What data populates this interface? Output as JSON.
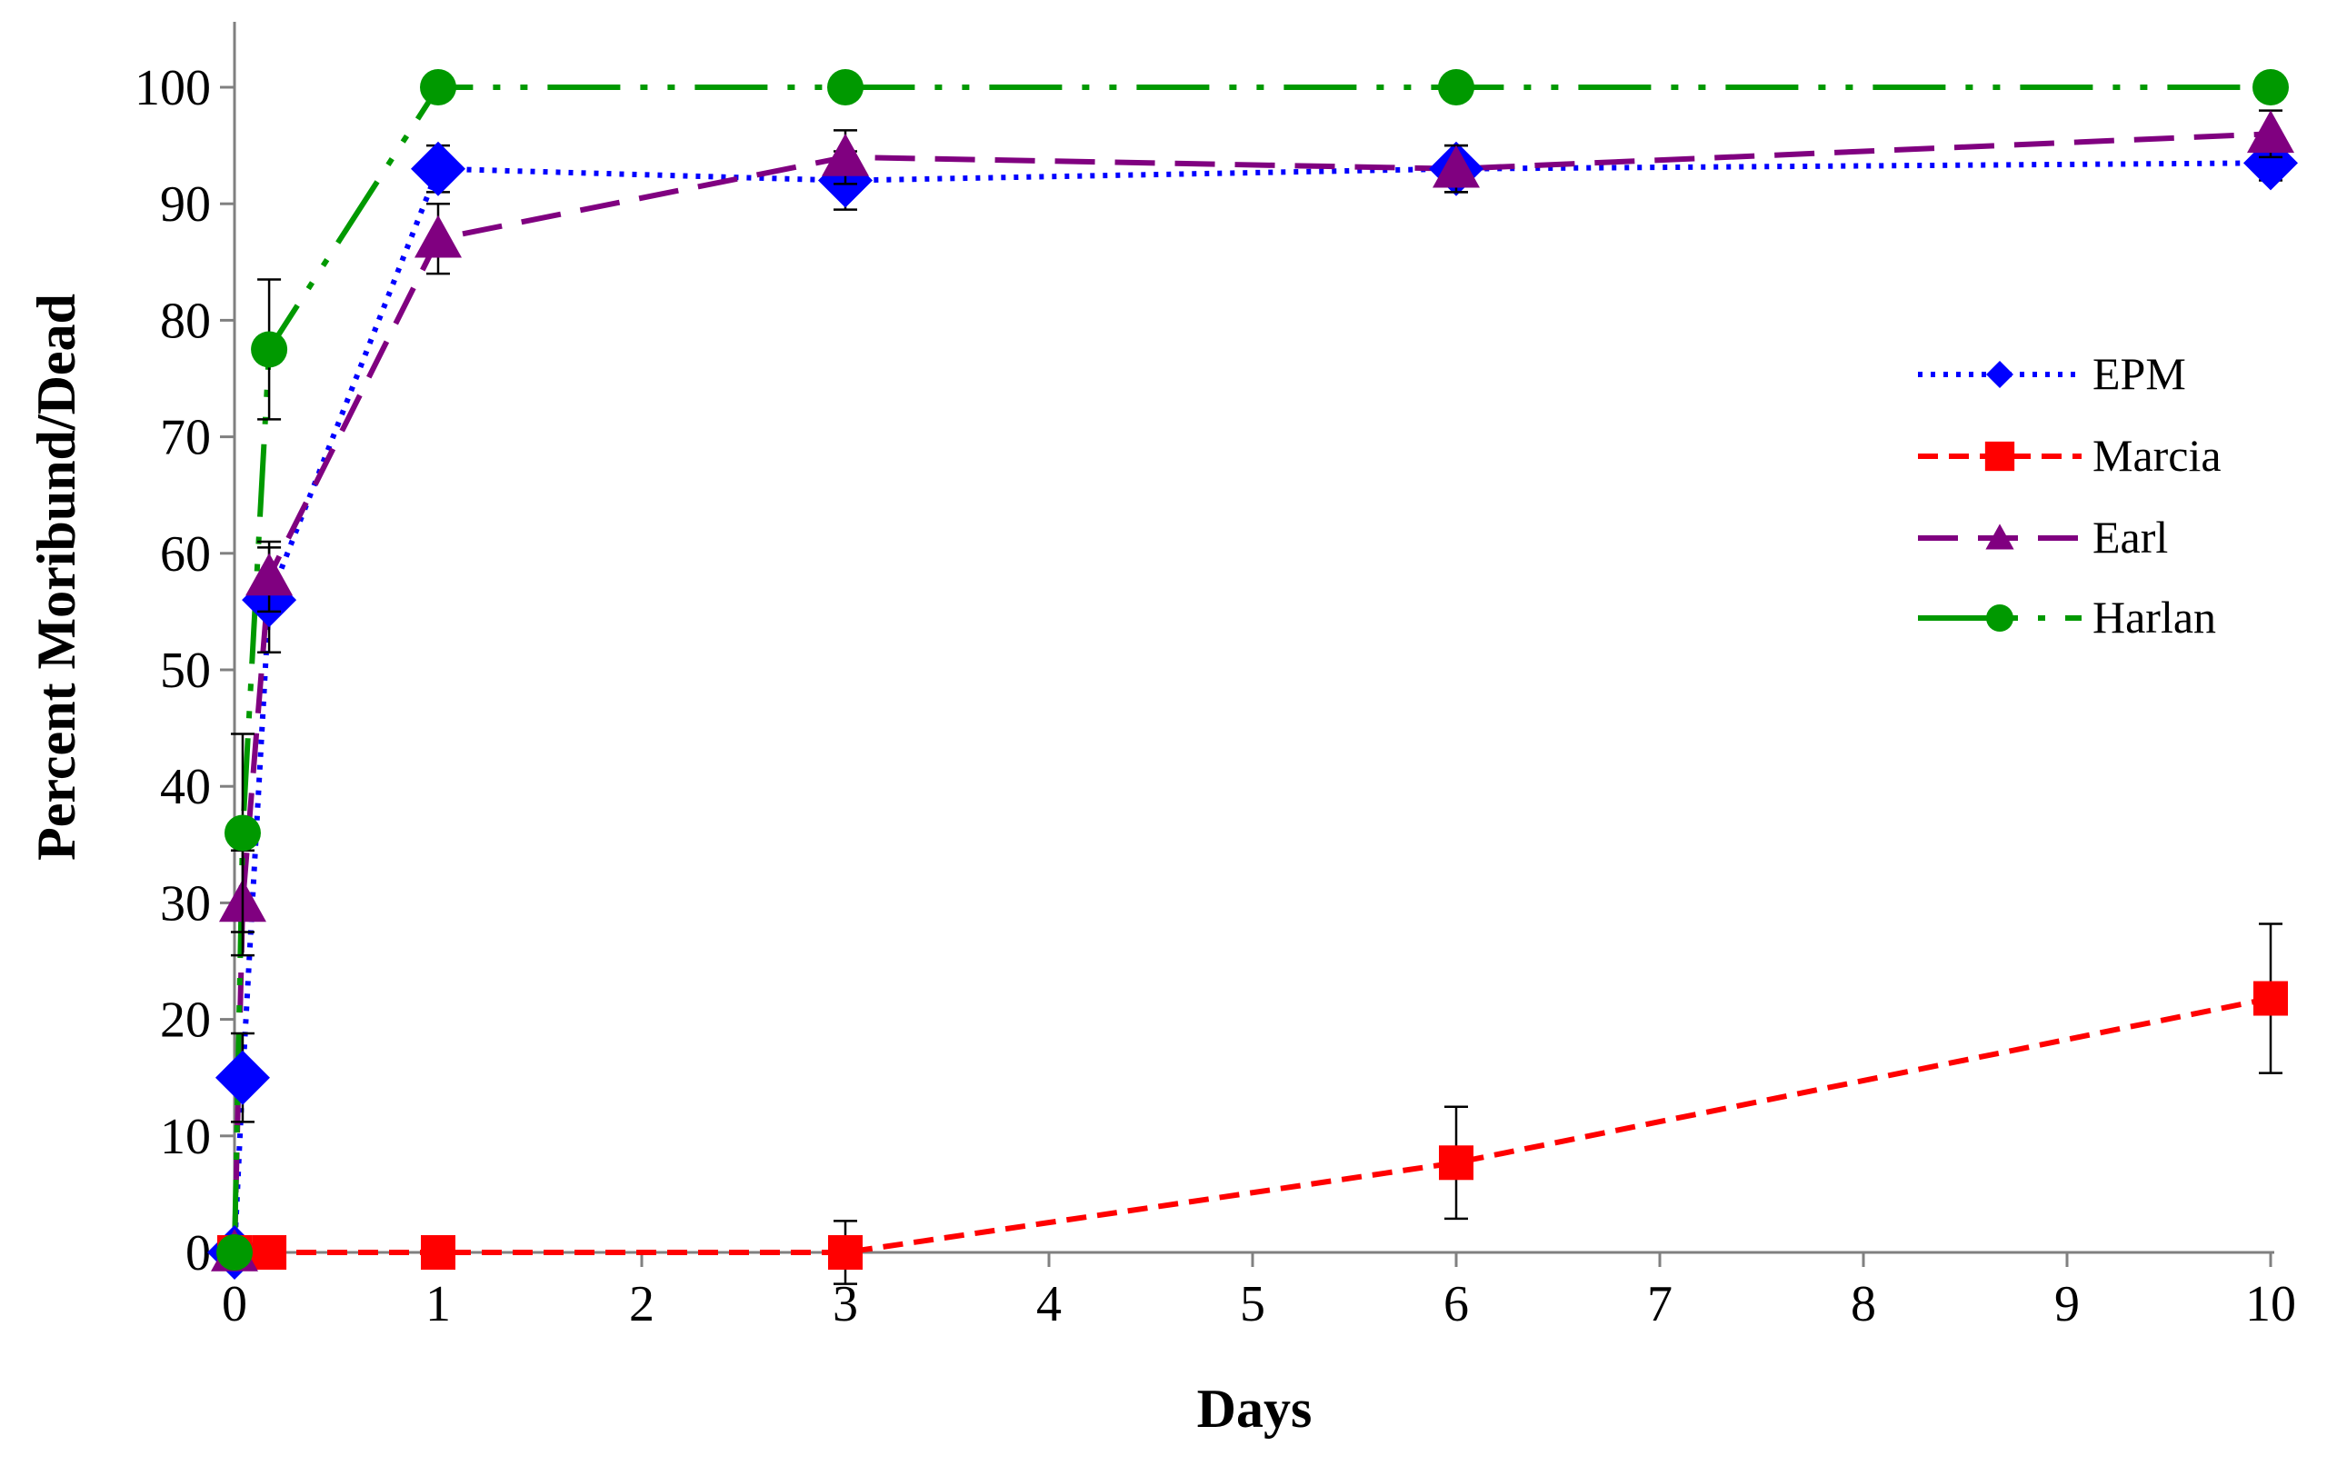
{
  "chart_data": {
    "type": "line",
    "xlabel": "Days",
    "ylabel": "Percent Moribund/Dead",
    "xlim": [
      0,
      10
    ],
    "ylim": [
      0,
      100
    ],
    "x_ticks": [
      "0",
      "1",
      "2",
      "3",
      "4",
      "5",
      "6",
      "7",
      "8",
      "9",
      "10"
    ],
    "y_ticks": [
      "0",
      "10",
      "20",
      "30",
      "40",
      "50",
      "60",
      "70",
      "80",
      "90",
      "100"
    ],
    "grid": false,
    "legend_position": "right",
    "series": [
      {
        "name": "EPM",
        "color": "#0000ff",
        "marker": "diamond",
        "line_style": "dotted",
        "points": [
          {
            "x": 0,
            "y": 0,
            "err": 0
          },
          {
            "x": 0.04,
            "y": 15,
            "err": 3.8
          },
          {
            "x": 0.17,
            "y": 56,
            "err": 4.5
          },
          {
            "x": 1,
            "y": 93,
            "err": 2
          },
          {
            "x": 3,
            "y": 92,
            "err": 2.5
          },
          {
            "x": 6,
            "y": 93,
            "err": 2
          },
          {
            "x": 10,
            "y": 93.5,
            "err": 1.5
          }
        ]
      },
      {
        "name": "Marcia",
        "color": "#ff0000",
        "marker": "square",
        "line_style": "dashed",
        "points": [
          {
            "x": 0,
            "y": 0,
            "err": 0
          },
          {
            "x": 0.17,
            "y": 0,
            "err": 0
          },
          {
            "x": 1,
            "y": 0,
            "err": 0
          },
          {
            "x": 3,
            "y": 0,
            "err": 2.7
          },
          {
            "x": 6,
            "y": 7.7,
            "err": 4.8
          },
          {
            "x": 10,
            "y": 21.8,
            "err": 6.4
          }
        ]
      },
      {
        "name": "Earl",
        "color": "#800080",
        "marker": "triangle",
        "line_style": "long-dash",
        "points": [
          {
            "x": 0,
            "y": 0,
            "err": 0
          },
          {
            "x": 0.04,
            "y": 30,
            "err": 4.5
          },
          {
            "x": 0.17,
            "y": 58,
            "err": 3
          },
          {
            "x": 1,
            "y": 87,
            "err": 3
          },
          {
            "x": 3,
            "y": 94,
            "err": 2.3
          },
          {
            "x": 6,
            "y": 93,
            "err": 2
          },
          {
            "x": 10,
            "y": 96,
            "err": 2
          }
        ]
      },
      {
        "name": "Harlan",
        "color": "#009900",
        "marker": "circle",
        "line_style": "dash-dot-dot",
        "points": [
          {
            "x": 0,
            "y": 0,
            "err": 0
          },
          {
            "x": 0.04,
            "y": 36,
            "err": 8.5
          },
          {
            "x": 0.17,
            "y": 77.5,
            "err": 6
          },
          {
            "x": 1,
            "y": 100,
            "err": 0
          },
          {
            "x": 3,
            "y": 100,
            "err": 0
          },
          {
            "x": 6,
            "y": 100,
            "err": 0
          },
          {
            "x": 10,
            "y": 100,
            "err": 0
          }
        ]
      }
    ]
  }
}
